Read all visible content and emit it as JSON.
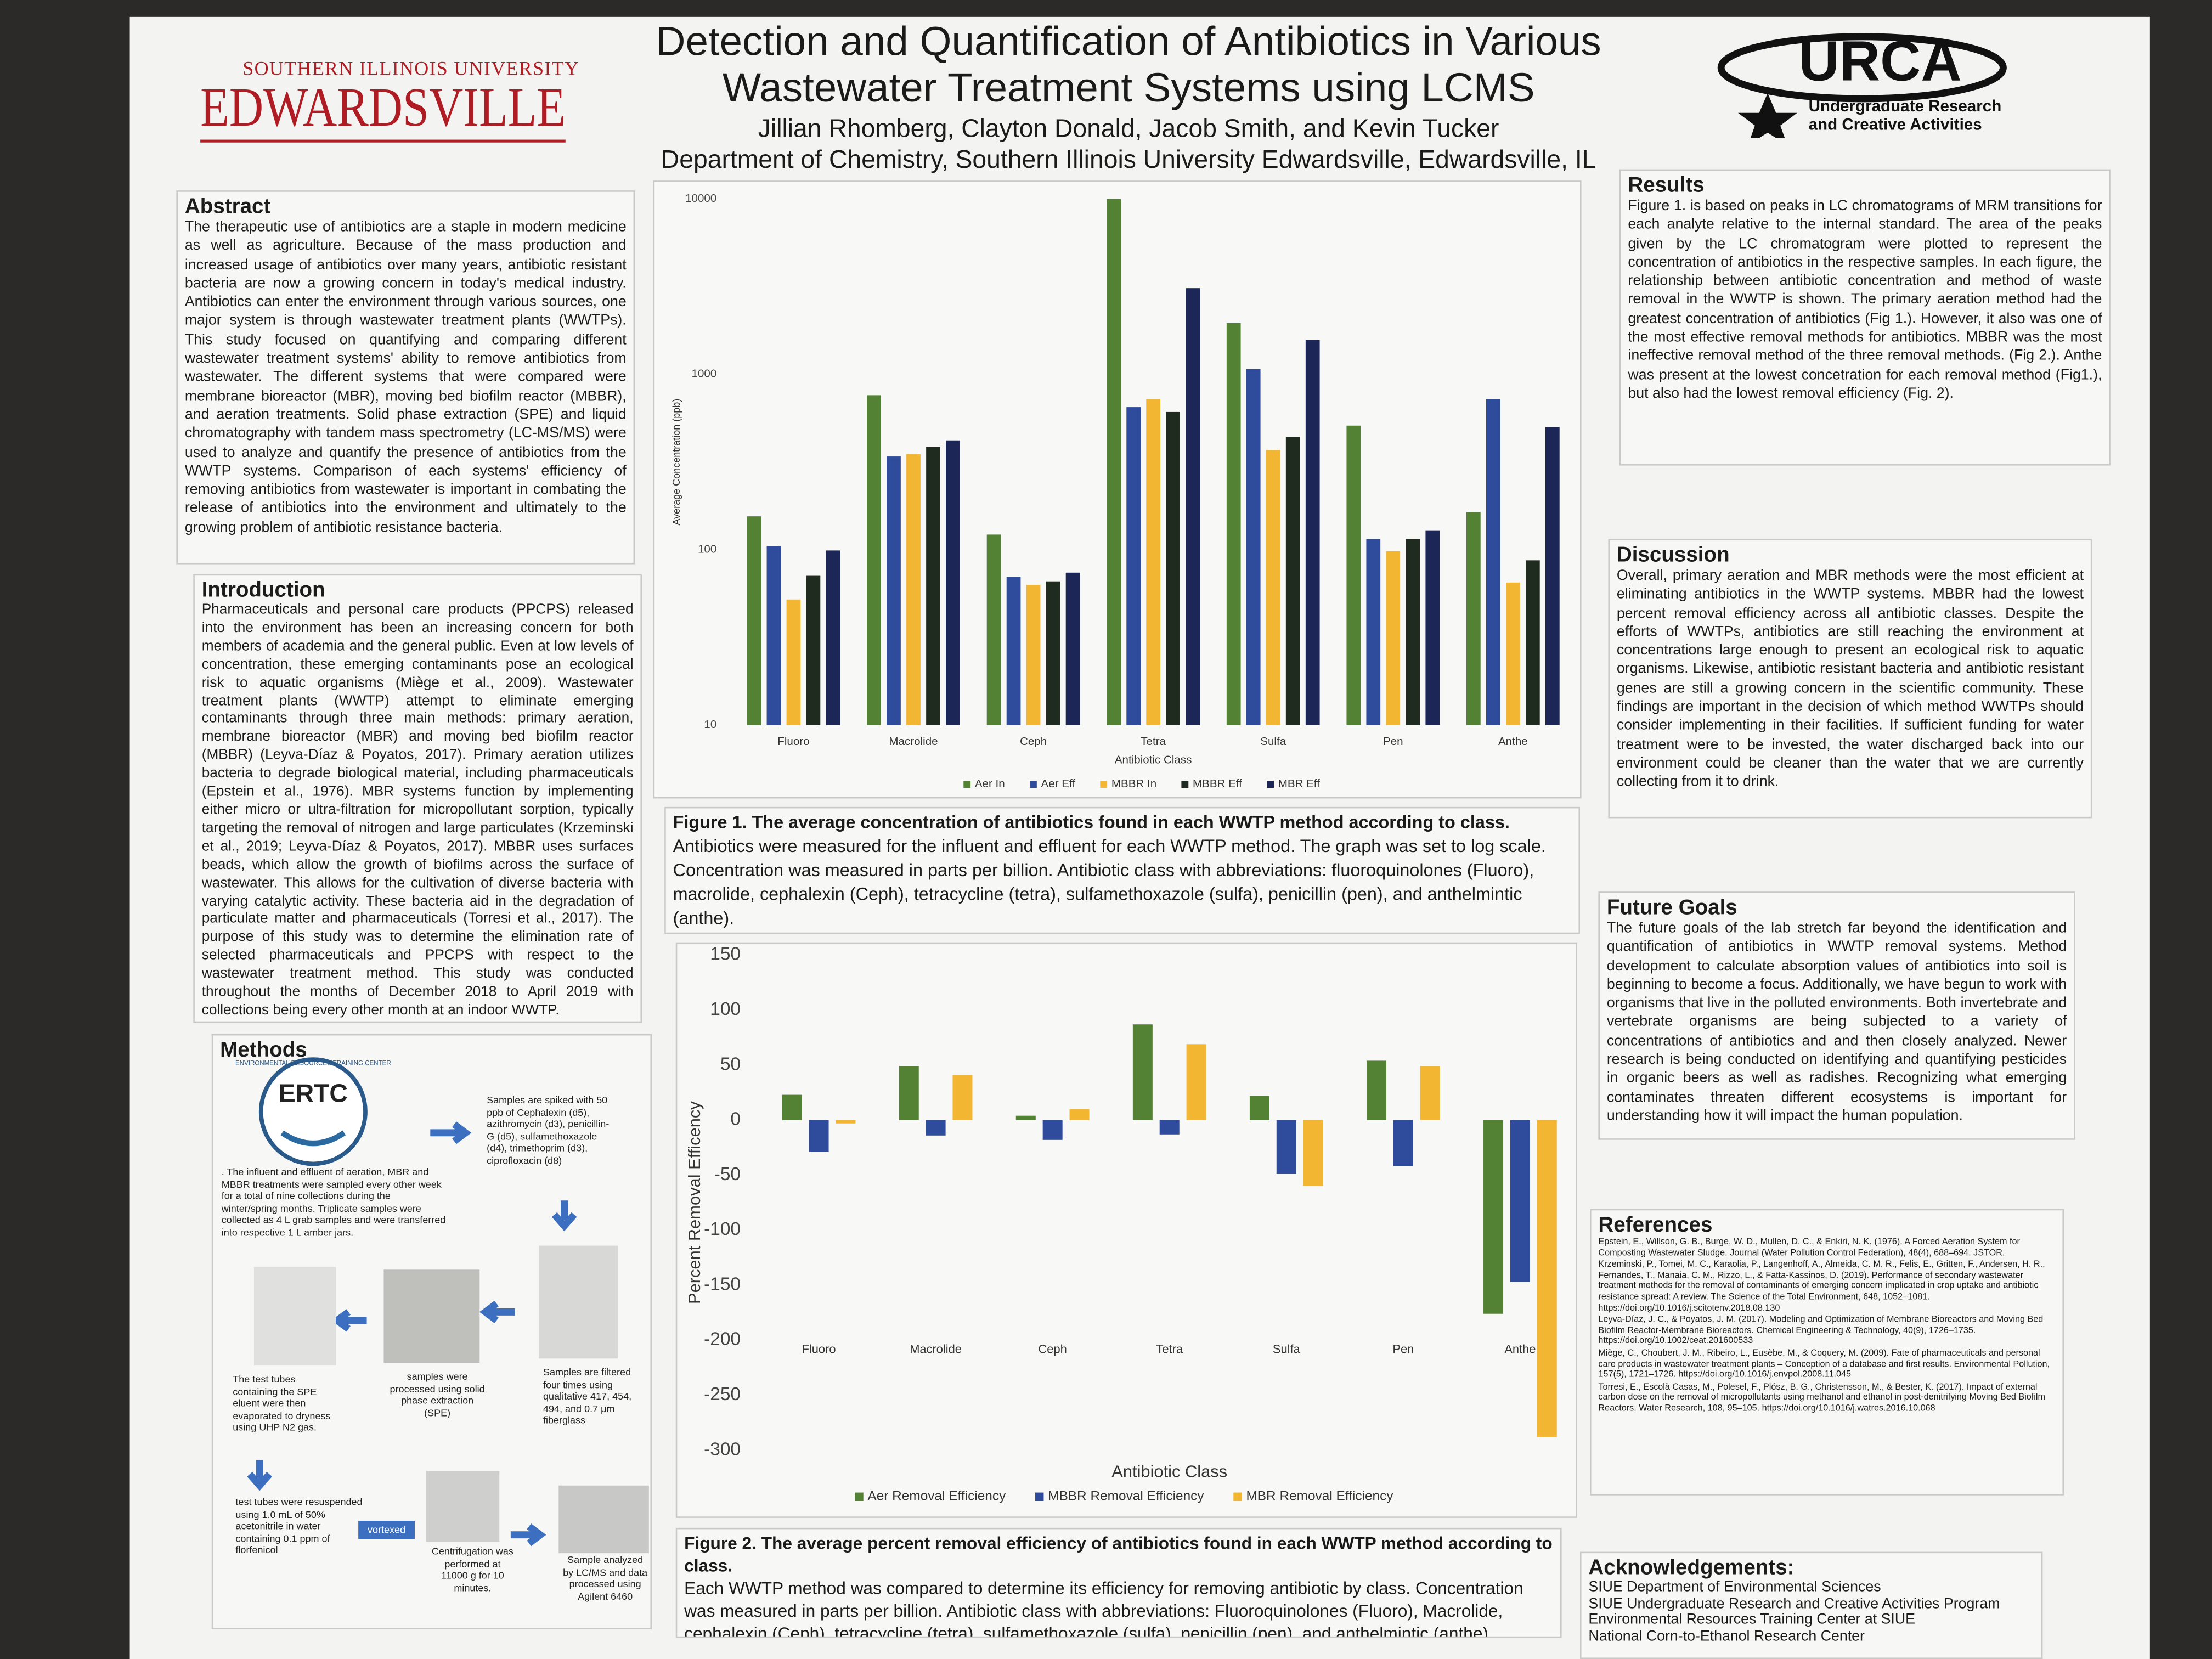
{
  "header": {
    "university_top": "SOUTHERN ILLINOIS UNIVERSITY",
    "university_name": "EDWARDSVILLE",
    "title_line1": "Detection and Quantification of Antibiotics in Various",
    "title_line2": "Wastewater Treatment Systems using LCMS",
    "authors": "Jillian Rhomberg, Clayton Donald, Jacob Smith, and Kevin Tucker",
    "affiliation": "Department of Chemistry, Southern Illinois University Edwardsville, Edwardsville, IL",
    "logo_name": "URCA",
    "logo_line1": "Undergraduate Research",
    "logo_line2": "and Creative Activities"
  },
  "abstract": {
    "heading": "Abstract",
    "text": "The therapeutic use of antibiotics are a staple in modern medicine as well as agriculture. Because of the mass production and increased usage of antibiotics over many years, antibiotic resistant bacteria are now a growing concern in today's medical industry. Antibiotics can enter the environment through various sources, one major system is through wastewater treatment plants (WWTPs). This study focused on quantifying and comparing different wastewater treatment systems' ability to remove antibiotics from wastewater. The different systems that were compared were membrane bioreactor (MBR), moving bed biofilm reactor (MBBR), and aeration treatments. Solid phase extraction (SPE) and liquid chromatography with tandem mass spectrometry (LC-MS/MS) were used to analyze and quantify the presence of antibiotics from the WWTP systems. Comparison of each systems' efficiency of removing antibiotics from wastewater is important in combating the release of antibiotics into the environment and ultimately to the growing problem of antibiotic resistance bacteria."
  },
  "introduction": {
    "heading": "Introduction",
    "text": "Pharmaceuticals and personal care products (PPCPS) released into the environment has been an increasing concern for both members of academia and the general public. Even at low levels of concentration, these emerging contaminants pose an ecological risk to aquatic organisms (Miège et al., 2009). Wastewater treatment plants (WWTP) attempt to eliminate emerging contaminants through three main methods: primary aeration, membrane bioreactor (MBR) and moving bed biofilm reactor (MBBR) (Leyva-Díaz & Poyatos, 2017). Primary aeration utilizes bacteria to degrade biological material, including pharmaceuticals (Epstein et al., 1976). MBR systems function by implementing either micro or ultra-filtration for micropollutant sorption, typically targeting the removal of nitrogen and large particulates (Krzeminski et al., 2019; Leyva-Díaz & Poyatos, 2017). MBBR uses surfaces beads, which allow the growth of biofilms across the surface of wastewater. This allows for the cultivation of diverse bacteria with varying catalytic activity. These bacteria aid in the degradation of particulate matter and pharmaceuticals (Torresi et al., 2017). The purpose of this study was to determine the elimination rate of selected pharmaceuticals and PPCPS with respect to the wastewater treatment method. This study was conducted throughout the months of December 2018 to April 2019 with collections being every other month at an indoor WWTP."
  },
  "methods": {
    "heading": "Methods",
    "logo": "ERTC",
    "logo_ring": "ENVIRONMENTAL RESOURCES TRAINING CENTER",
    "steps": [
      ". The influent and effluent of aeration, MBR and MBBR treatments were sampled every other week for a total of nine collections during the winter/spring months. Triplicate samples were collected as 4 L grab samples and were transferred into respective 1 L amber jars.",
      "Samples are spiked with 50 ppb of Cephalexin (d5), azithromycin (d3), penicillin-G (d5), sulfamethoxazole (d4), trimethoprim (d3), ciprofloxacin (d8)",
      "Samples are filtered four times using qualitative 417, 454, 494, and 0.7 μm fiberglass",
      "samples were processed using solid phase extraction (SPE)",
      "The test tubes containing the SPE eluent were then evaporated to dryness using UHP N2 gas.",
      "test tubes were resuspended using 1.0 mL of 50% acetonitrile in water containing 0.1 ppm of florfenicol",
      "vortexed",
      "Centrifugation was performed at 11000 g for 10 minutes.",
      "Sample analyzed by LC/MS and data processed using Agilent 6460"
    ]
  },
  "results": {
    "heading": "Results",
    "text": "Figure 1. is based on peaks in LC chromatograms of MRM transitions for each analyte relative to the internal standard. The area of the peaks given by the LC chromatogram were plotted to represent the concentration of antibiotics in the respective samples. In each figure, the relationship between antibiotic concentration and method of waste removal in the WWTP is shown. The primary aeration method had the greatest concentration of antibiotics (Fig 1.). However, it also was one of the most effective removal methods for antibiotics. MBBR was the most ineffective removal method of the three removal methods. (Fig 2.). Anthe was present at the lowest concetration for each removal method (Fig1.), but also had the lowest removal efficiency (Fig. 2)."
  },
  "discussion": {
    "heading": "Discussion",
    "text": "Overall, primary aeration and MBR methods were the most efficient at eliminating antibiotics in the WWTP systems. MBBR had the lowest percent removal efficiency across all antibiotic classes. Despite the efforts of WWTPs, antibiotics are still reaching the environment at concentrations large enough to present an ecological risk to aquatic organisms. Likewise, antibiotic resistant bacteria and antibiotic resistant genes are still a growing concern in the scientific community. These findings are important in the decision of which method WWTPs should consider implementing in their facilities. If sufficient funding for water treatment were to be invested, the water discharged back into our environment could be cleaner than the water that we are currently collecting from it to drink."
  },
  "future_goals": {
    "heading": "Future Goals",
    "text": "The future goals of the lab stretch far beyond the identification and quantification of antibiotics in WWTP removal systems. Method development to calculate absorption values of antibiotics into soil is beginning to become a focus. Additionally, we have begun to work with organisms that live in the polluted environments. Both invertebrate and vertebrate organisms are being subjected to a variety of concentrations of antibiotics and and then closely analyzed. Newer research is being conducted on identifying and quantifying pesticides in organic beers as well as radishes. Recognizing what emerging contaminates threaten different ecosystems is important for understanding how it will impact the human population."
  },
  "references": {
    "heading": "References",
    "items": [
      "Epstein, E., Willson, G. B., Burge, W. D., Mullen, D. C., & Enkiri, N. K. (1976). A Forced Aeration System for Composting Wastewater Sludge. Journal (Water Pollution Control Federation), 48(4), 688–694. JSTOR.",
      "Krzeminski, P., Tomei, M. C., Karaolia, P., Langenhoff, A., Almeida, C. M. R., Felis, E., Gritten, F., Andersen, H. R., Fernandes, T., Manaia, C. M., Rizzo, L., & Fatta-Kassinos, D. (2019). Performance of secondary wastewater treatment methods for the removal of contaminants of emerging concern implicated in crop uptake and antibiotic resistance spread: A review. The Science of the Total Environment, 648, 1052–1081. https://doi.org/10.1016/j.scitotenv.2018.08.130",
      "Leyva-Díaz, J. C., & Poyatos, J. M. (2017). Modeling and Optimization of Membrane Bioreactors and Moving Bed Biofilm Reactor-Membrane Bioreactors. Chemical Engineering & Technology, 40(9), 1726–1735. https://doi.org/10.1002/ceat.201600533",
      "Miège, C., Choubert, J. M., Ribeiro, L., Eusèbe, M., & Coquery, M. (2009). Fate of pharmaceuticals and personal care products in wastewater treatment plants – Conception of a database and first results. Environmental Pollution, 157(5), 1721–1726. https://doi.org/10.1016/j.envpol.2008.11.045",
      "Torresi, E., Escolà Casas, M., Polesel, F., Plósz, B. G., Christensson, M., & Bester, K. (2017). Impact of external carbon dose on the removal of micropollutants using methanol and ethanol in post-denitrifying Moving Bed Biofilm Reactors. Water Research, 108, 95–105. https://doi.org/10.1016/j.watres.2016.10.068"
    ]
  },
  "acknowledgements": {
    "heading": "Acknowledgements:",
    "items": [
      "SIUE Department of Environmental Sciences",
      "SIUE Undergraduate Research and Creative Activities Program",
      "Environmental Resources Training Center at SIUE",
      "National Corn-to-Ethanol Research Center"
    ]
  },
  "figure1_caption": {
    "title": "Figure 1. The average concentration of antibiotics found in each WWTP method according to class.",
    "text": "Antibiotics were measured for the influent and effluent for each WWTP method. The graph was set to log scale. Concentration was measured in parts per billion. Antibiotic class with abbreviations: fluoroquinolones (Fluoro), macrolide, cephalexin (Ceph), tetracycline (tetra), sulfamethoxazole (sulfa), penicillin (pen), and anthelmintic (anthe)."
  },
  "figure2_caption": {
    "title": "Figure 2. The average percent removal efficiency of antibiotics found in each WWTP method according to class.",
    "text": "Each WWTP method was compared to determine its efficiency for removing antibiotic by class. Concentration was measured in parts per billion. Antibiotic class with abbreviations: Fluoroquinolones (Fluoro), Macrolide, cephalexin (Ceph), tetracycline (tetra), sulfamethoxazole (sulfa), penicillin (pen), and anthelmintic (anthe)."
  },
  "chart_data": [
    {
      "type": "bar",
      "log_scale": true,
      "x_label": "Antibiotic Class",
      "y_label": "Average Concentration (ppb)",
      "categories": [
        "Fluoro",
        "Macrolide",
        "Ceph",
        "Tetra",
        "Sulfa",
        "Pen",
        "Anthe"
      ],
      "series": [
        {
          "name": "Aer In",
          "color": "#548235",
          "values": [
            155,
            760,
            122,
            10000,
            1960,
            510,
            164
          ]
        },
        {
          "name": "Aer Eff",
          "color": "#2f4b9c",
          "values": [
            105,
            340,
            70,
            650,
            1070,
            115,
            720
          ]
        },
        {
          "name": "MBBR In",
          "color": "#f2b632",
          "values": [
            52,
            350,
            63,
            720,
            370,
            98,
            65
          ]
        },
        {
          "name": "MBBR Eff",
          "color": "#1f2b1f",
          "values": [
            71,
            385,
            66,
            610,
            440,
            115,
            87
          ]
        },
        {
          "name": "MBR Eff",
          "color": "#1c2757",
          "values": [
            99,
            420,
            74,
            3100,
            1570,
            129,
            500
          ]
        }
      ],
      "ylim": [
        10,
        10000
      ],
      "yticks": [
        10,
        100,
        1000,
        10000
      ],
      "legend": "bottom"
    },
    {
      "type": "bar",
      "log_scale": false,
      "x_label": "Antibiotic Class",
      "y_label": "Percent Removal Efficency",
      "categories": [
        "Fluoro",
        "Macrolide",
        "Ceph",
        "Tetra",
        "Sulfa",
        "Pen",
        "Anthe"
      ],
      "series": [
        {
          "name": "Aer Removal Efficiency",
          "color": "#548235",
          "values": [
            23,
            49,
            4,
            87,
            22,
            54,
            -176
          ]
        },
        {
          "name": "MBBR Removal Efficiency",
          "color": "#2f4b9c",
          "values": [
            -29,
            -14,
            -18,
            -13,
            -49,
            -42,
            -147
          ]
        },
        {
          "name": "MBR Removal Efficiency",
          "color": "#f2b632",
          "values": [
            -3,
            41,
            10,
            69,
            -60,
            49,
            -288
          ]
        }
      ],
      "ylim": [
        -300,
        150
      ],
      "yticks": [
        150,
        100,
        50,
        0,
        -50,
        -100,
        -150,
        -200,
        -250,
        -300
      ],
      "legend": "bottom"
    }
  ]
}
